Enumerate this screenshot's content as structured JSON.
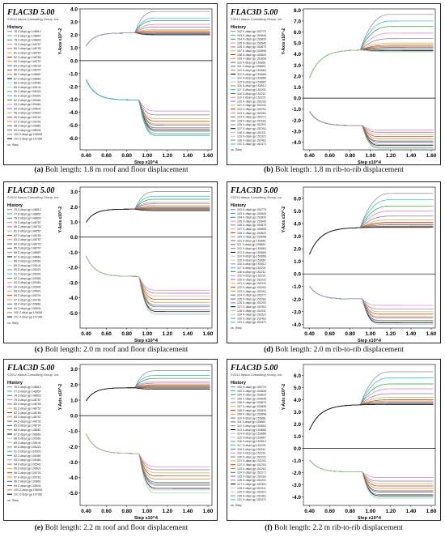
{
  "header_title": "FLAC3D 5.00",
  "header_copyright": "©2012 Itasca Consulting Group, Inc.",
  "history_label": "History",
  "vs_label": "vs. Step",
  "x_axis_label": "Step x10^4",
  "y_axis_label_roof": "Y-Axis x10^-2",
  "y_axis_label_rib": "Y-Axis x10^-2",
  "legend_roof": [
    "76 Z-displ gp 148812",
    "77 Z-displ gp 148857",
    "78 Z-displ gp 148802",
    "79 Z-displ gp 148757",
    "80 Z-displ gp 148792",
    "81 Z-displ gp 148757",
    "82 Z-displ gp 148782",
    "83 Z-displ gp 148757",
    "84 Z-displ gp 148732",
    "85 Z-displ gp 148707",
    "86 Z-displ gp 148687",
    "87 Z-displ gp 108661",
    "88 Z-displ gp 105061",
    "89 Z-displ gp 105141",
    "90 Z-displ gp 105221",
    "91 Z-displ gp 105301",
    "92 Z-displ gp 105381",
    "93 Z-displ gp 105461",
    "94 Z-displ gp 105541",
    "95 Z-displ gp 105621",
    "96 Z-displ gp 105701",
    "97 Z-displ gp 105781",
    "98 Z-displ gp 105861",
    "99 Z-displ gp 105941",
    "100 Z-displ gp 106061",
    "101 Z-displ gp 107361"
  ],
  "legend_rib": [
    "102 X-displ gp 153770",
    "103 X-displ gp 153845",
    "104 X-displ gp 153820",
    "105 X-displ gp 153645",
    "106 X-displ gp 153870",
    "107 X-displ gp 153895",
    "108 X-displ gp 153820",
    "109 X-displ gp 153658",
    "110 X-displ gp 153861",
    "111 X-displ gp 153862",
    "112 X-displ gp 153664",
    "113 X-displ gp 153865",
    "114 X-displ gp 153866",
    "115 X-displ gp 153867",
    "116 X-displ gp 153912",
    "117 X-displ gp 152201",
    "118 X-displ gp 152211",
    "119 X-displ gp 152221",
    "120 X-displ gp 152231",
    "121 X-displ gp 152241",
    "122 X-displ gp 152251",
    "123 X-displ gp 152261",
    "124 X-displ gp 152271",
    "125 X-displ gp 152281",
    "126 X-displ gp 152291",
    "127 X-displ gp 152301",
    "128 X-displ gp 152311",
    "129 X-displ gp 152321",
    "130 X-displ gp 152461",
    "131 X-displ gp 152471"
  ],
  "chart_data": [
    {
      "id": "a",
      "type": "line",
      "kind": "roof",
      "title": "",
      "xlabel": "Step x10^4",
      "ylabel": "Y-Axis x10^-2",
      "xlim": [
        0.34,
        1.64
      ],
      "ylim": [
        -6.9,
        4.0
      ],
      "xticks": [
        0.4,
        0.6,
        0.8,
        1.0,
        1.2,
        1.4,
        1.6
      ],
      "yticks": [
        4.0,
        3.0,
        2.0,
        1.0,
        0.0,
        -1.0,
        -2.0,
        -3.0,
        -4.0,
        -5.0,
        -6.0
      ],
      "upper_plateau": 2.15,
      "upper_final": [
        3.8,
        3.3,
        3.1,
        2.8,
        2.6,
        2.4,
        2.3,
        2.2,
        2.15,
        2.1,
        2.05,
        2.0,
        1.95
      ],
      "lower_plateau": -3.05,
      "lower_final": [
        -3.9,
        -4.2,
        -4.5,
        -4.7,
        -4.9,
        -5.0,
        -5.2,
        -5.3,
        -5.4,
        -5.5,
        -5.6,
        -5.7,
        -5.8
      ],
      "caption_label": "(a)",
      "caption_text": " Bolt length: 1.8 m roof and floor displacement"
    },
    {
      "id": "b",
      "type": "line",
      "kind": "rib",
      "title": "",
      "xlabel": "Step x10^4",
      "ylabel": "Y-Axis x10^-2",
      "xlim": [
        0.34,
        1.64
      ],
      "ylim": [
        -4.7,
        8.1
      ],
      "xticks": [
        0.4,
        0.6,
        0.8,
        1.0,
        1.2,
        1.4,
        1.6
      ],
      "yticks": [
        8.0,
        7.0,
        6.0,
        5.0,
        4.0,
        3.0,
        2.0,
        1.0,
        0.0,
        -1.0,
        -2.0,
        -3.0,
        -4.0
      ],
      "upper_plateau": 4.4,
      "upper_final": [
        7.6,
        7.0,
        6.5,
        5.9,
        5.4,
        5.0,
        4.8,
        4.7,
        4.6,
        4.5,
        4.4,
        4.3,
        4.25,
        4.2
      ],
      "lower_plateau": -2.5,
      "lower_final": [
        -2.9,
        -3.1,
        -3.3,
        -3.5,
        -3.7,
        -3.9,
        -4.0,
        -4.2,
        -4.3,
        -4.4,
        -4.5,
        -4.55
      ],
      "caption_label": "(b)",
      "caption_text": " Bolt length: 1.8 m rib-to-rib displacement"
    },
    {
      "id": "c",
      "type": "line",
      "kind": "roof",
      "title": "",
      "xlabel": "Step x10^4",
      "ylabel": "Y-Axis x10^-2",
      "xlim": [
        0.34,
        1.64
      ],
      "ylim": [
        -6.0,
        3.3
      ],
      "xticks": [
        0.4,
        0.6,
        0.8,
        1.0,
        1.2,
        1.4,
        1.6
      ],
      "yticks": [
        3.0,
        2.0,
        1.0,
        0.0,
        -1.0,
        -2.0,
        -3.0,
        -4.0,
        -5.0
      ],
      "upper_plateau": 1.85,
      "upper_final": [
        3.0,
        2.7,
        2.5,
        2.3,
        2.2,
        2.1,
        2.0,
        1.95,
        1.9,
        1.85,
        1.8,
        1.75
      ],
      "lower_plateau": -2.6,
      "lower_final": [
        -3.5,
        -3.7,
        -3.9,
        -4.1,
        -4.3,
        -4.5,
        -4.6,
        -4.8,
        -4.9,
        -5.0,
        -5.1
      ],
      "caption_label": "(c)",
      "caption_text": " Bolt length: 2.0 m roof and floor displacement"
    },
    {
      "id": "d",
      "type": "line",
      "kind": "rib",
      "title": "",
      "xlabel": "Step x10^4",
      "ylabel": "Y-Axis x10^-2",
      "xlim": [
        0.34,
        1.64
      ],
      "ylim": [
        -4.3,
        6.9
      ],
      "xticks": [
        0.4,
        0.6,
        0.8,
        1.0,
        1.2,
        1.4,
        1.6
      ],
      "yticks": [
        6.0,
        5.0,
        4.0,
        3.0,
        2.0,
        1.0,
        0.0,
        -1.0,
        -2.0,
        -3.0,
        -4.0
      ],
      "upper_plateau": 3.7,
      "upper_final": [
        6.4,
        5.9,
        5.4,
        5.0,
        4.6,
        4.3,
        4.1,
        4.0,
        3.9,
        3.8,
        3.75,
        3.7
      ],
      "lower_plateau": -2.0,
      "lower_final": [
        -2.5,
        -2.8,
        -3.0,
        -3.2,
        -3.4,
        -3.5,
        -3.7,
        -3.8,
        -3.9,
        -4.0
      ],
      "caption_label": "(d)",
      "caption_text": " Bolt length: 2.0 m rib-to-rib displacement"
    },
    {
      "id": "e",
      "type": "line",
      "kind": "roof",
      "title": "",
      "xlabel": "Step x10^4",
      "ylabel": "Y-Axis x10^-2",
      "xlim": [
        0.34,
        1.64
      ],
      "ylim": [
        -5.8,
        3.3
      ],
      "xticks": [
        0.4,
        0.6,
        0.8,
        1.0,
        1.2,
        1.4,
        1.6
      ],
      "yticks": [
        3.0,
        2.0,
        1.0,
        0.0,
        -1.0,
        -2.0,
        -3.0,
        -4.0,
        -5.0
      ],
      "upper_plateau": 1.8,
      "upper_final": [
        2.9,
        2.6,
        2.4,
        2.2,
        2.1,
        2.0,
        1.95,
        1.9,
        1.85,
        1.8,
        1.75,
        1.7
      ],
      "lower_plateau": -2.45,
      "lower_final": [
        -3.3,
        -3.5,
        -3.7,
        -3.9,
        -4.1,
        -4.3,
        -4.4,
        -4.5,
        -4.7,
        -4.8,
        -5.0
      ],
      "caption_label": "(e)",
      "caption_text": " Bolt length: 2.2 m roof and floor displacement"
    },
    {
      "id": "f",
      "type": "line",
      "kind": "rib",
      "title": "",
      "xlabel": "Step x10^4",
      "ylabel": "Y-Axis x10^-2",
      "xlim": [
        0.34,
        1.64
      ],
      "ylim": [
        -4.7,
        6.9
      ],
      "xticks": [
        0.4,
        0.6,
        0.8,
        1.0,
        1.2,
        1.4,
        1.6
      ],
      "yticks": [
        6.0,
        5.0,
        4.0,
        3.0,
        2.0,
        1.0,
        0.0,
        -1.0,
        -2.0,
        -3.0,
        -4.0
      ],
      "upper_plateau": 3.6,
      "upper_final": [
        6.3,
        5.8,
        5.3,
        4.9,
        4.5,
        4.2,
        4.0,
        3.9,
        3.8,
        3.7,
        3.65,
        3.6
      ],
      "lower_plateau": -1.95,
      "lower_final": [
        -2.4,
        -2.7,
        -2.9,
        -3.1,
        -3.3,
        -3.5,
        -3.6,
        -3.8,
        -3.9,
        -4.0,
        -4.1
      ],
      "caption_label": "(f)",
      "caption_text": " Bolt length: 2.2 m rib-to-rib displacement"
    }
  ],
  "palette": [
    "#888888",
    "#17becf",
    "#2ca02c",
    "#e377c2",
    "#9467bd",
    "#bcbd22",
    "#d62728",
    "#ff7f0e",
    "#1f77b4",
    "#8c564b",
    "#7f7f7f",
    "#000000",
    "#aec7e8",
    "#98df8a"
  ]
}
